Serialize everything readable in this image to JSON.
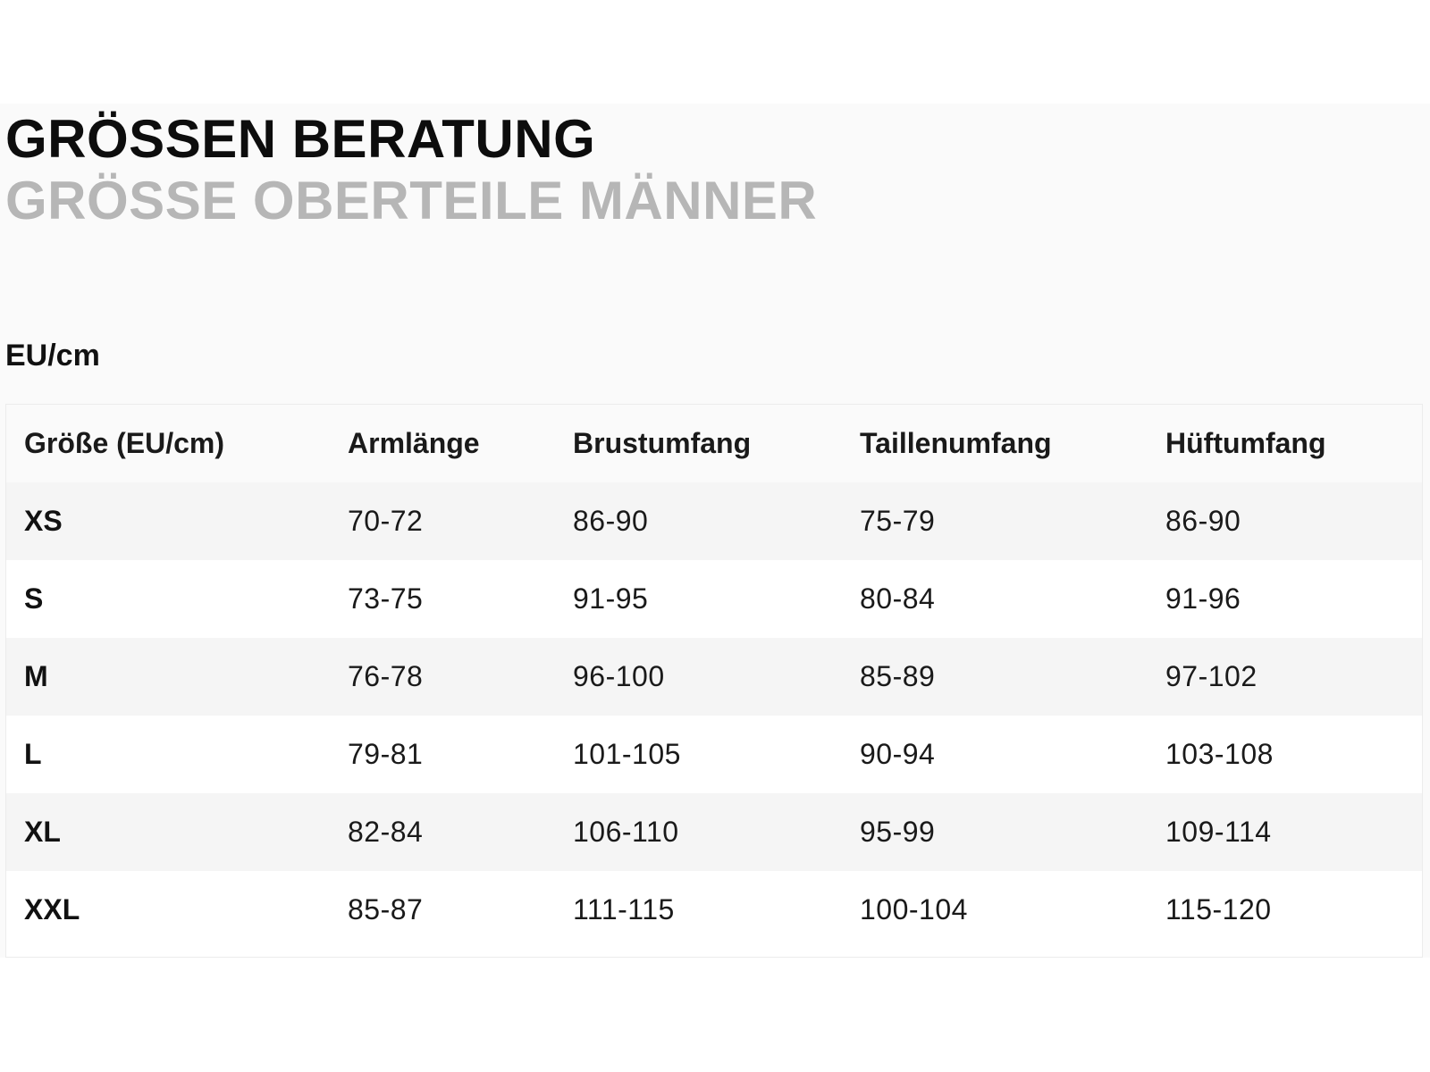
{
  "header": {
    "title": "GRÖSSEN BERATUNG",
    "subtitle": "GRÖSSE OBERTEILE MÄNNER"
  },
  "unit_label": "EU/cm",
  "colors": {
    "title": "#0d0d0d",
    "subtitle": "#b6b6b6",
    "panel_background": "#fafafa",
    "row_stripe": "#f5f5f5"
  },
  "table": {
    "columns": [
      "Größe (EU/cm)",
      "Armlänge",
      "Brustumfang",
      "Taillenumfang",
      "Hüftumfang"
    ],
    "rows": [
      [
        "XS",
        "70-72",
        "86-90",
        "75-79",
        "86-90"
      ],
      [
        "S",
        "73-75",
        "91-95",
        "80-84",
        "91-96"
      ],
      [
        "M",
        "76-78",
        "96-100",
        "85-89",
        "97-102"
      ],
      [
        "L",
        "79-81",
        "101-105",
        "90-94",
        "103-108"
      ],
      [
        "XL",
        "82-84",
        "106-110",
        "95-99",
        "109-114"
      ],
      [
        "XXL",
        "85-87",
        "111-115",
        "100-104",
        "115-120"
      ]
    ]
  }
}
